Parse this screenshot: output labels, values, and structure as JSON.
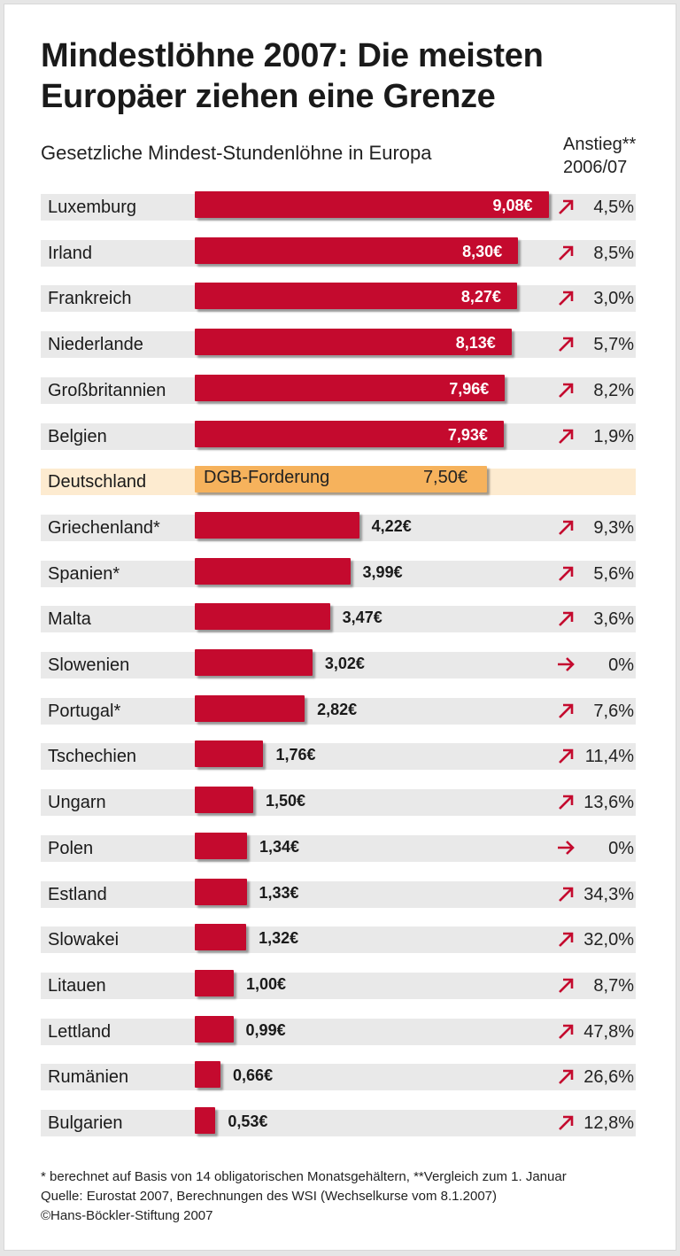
{
  "colors": {
    "bar": "#c40a2e",
    "highlight_bar": "#f6b25c",
    "highlight_row": "#fdebd0",
    "row": "#e9e9e9",
    "arrow": "#c40a2e"
  },
  "chart_data": {
    "type": "bar",
    "orientation": "horizontal",
    "title": "Mindestlöhne 2007: Die meisten Europäer ziehen eine Grenze",
    "subtitle": "Gesetzliche Mindest-Stundenlöhne in Europa",
    "change_header": [
      "Anstieg**",
      "2006/07"
    ],
    "unit": "€",
    "rows": [
      {
        "country": "Luxemburg",
        "value": 9.08,
        "label": "9,08€",
        "change": "4,5%",
        "trend": "up"
      },
      {
        "country": "Irland",
        "value": 8.3,
        "label": "8,30€",
        "change": "8,5%",
        "trend": "up"
      },
      {
        "country": "Frankreich",
        "value": 8.27,
        "label": "8,27€",
        "change": "3,0%",
        "trend": "up"
      },
      {
        "country": "Niederlande",
        "value": 8.13,
        "label": "8,13€",
        "change": "5,7%",
        "trend": "up"
      },
      {
        "country": "Großbritannien",
        "value": 7.96,
        "label": "7,96€",
        "change": "8,2%",
        "trend": "up"
      },
      {
        "country": "Belgien",
        "value": 7.93,
        "label": "7,93€",
        "change": "1,9%",
        "trend": "up"
      },
      {
        "country": "Deutschland",
        "value": 7.5,
        "label": "7,50€",
        "note": "DGB-Forderung",
        "highlight": true
      },
      {
        "country": "Griechenland*",
        "value": 4.22,
        "label": "4,22€",
        "change": "9,3%",
        "trend": "up"
      },
      {
        "country": "Spanien*",
        "value": 3.99,
        "label": "3,99€",
        "change": "5,6%",
        "trend": "up"
      },
      {
        "country": "Malta",
        "value": 3.47,
        "label": "3,47€",
        "change": "3,6%",
        "trend": "up"
      },
      {
        "country": "Slowenien",
        "value": 3.02,
        "label": "3,02€",
        "change": "0%",
        "trend": "flat"
      },
      {
        "country": "Portugal*",
        "value": 2.82,
        "label": "2,82€",
        "change": "7,6%",
        "trend": "up"
      },
      {
        "country": "Tschechien",
        "value": 1.76,
        "label": "1,76€",
        "change": "11,4%",
        "trend": "up"
      },
      {
        "country": "Ungarn",
        "value": 1.5,
        "label": "1,50€",
        "change": "13,6%",
        "trend": "up"
      },
      {
        "country": "Polen",
        "value": 1.34,
        "label": "1,34€",
        "change": "0%",
        "trend": "flat"
      },
      {
        "country": "Estland",
        "value": 1.33,
        "label": "1,33€",
        "change": "34,3%",
        "trend": "up"
      },
      {
        "country": "Slowakei",
        "value": 1.32,
        "label": "1,32€",
        "change": "32,0%",
        "trend": "up"
      },
      {
        "country": "Litauen",
        "value": 1.0,
        "label": "1,00€",
        "change": "8,7%",
        "trend": "up"
      },
      {
        "country": "Lettland",
        "value": 0.99,
        "label": "0,99€",
        "change": "47,8%",
        "trend": "up"
      },
      {
        "country": "Rumänien",
        "value": 0.66,
        "label": "0,66€",
        "change": "26,6%",
        "trend": "up"
      },
      {
        "country": "Bulgarien",
        "value": 0.53,
        "label": "0,53€",
        "change": "12,8%",
        "trend": "up"
      }
    ]
  },
  "footer": {
    "note": "* berechnet auf Basis von 14 obligatorischen Monatsgehältern, **Vergleich zum 1. Januar",
    "source": "Quelle: Eurostat 2007, Berechnungen des WSI (Wechselkurse vom 8.1.2007)",
    "copyright": "©Hans-Böckler-Stiftung 2007"
  }
}
